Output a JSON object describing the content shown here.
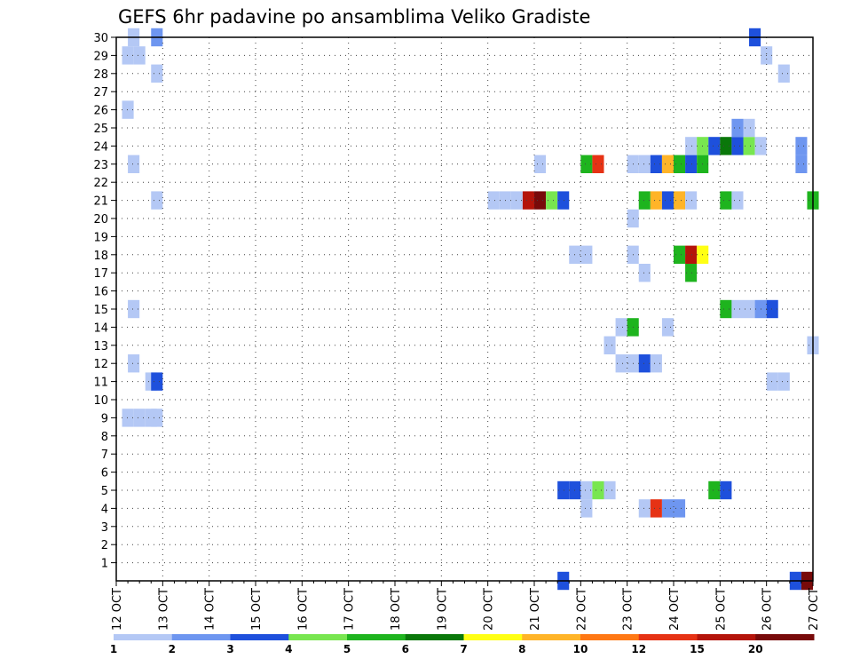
{
  "chart_data": {
    "type": "heatmap",
    "title": "GEFS 6hr padavine po ansamblima Veliko Gradiste",
    "xlabel": "",
    "ylabel": "",
    "x_ticks": [
      "12 OCT",
      "13 OCT",
      "14 OCT",
      "15 OCT",
      "16 OCT",
      "17 OCT",
      "18 OCT",
      "19 OCT",
      "20 OCT",
      "21 OCT",
      "22 OCT",
      "23 OCT",
      "24 OCT",
      "25 OCT",
      "26 OCT",
      "27 OCT"
    ],
    "y_ticks": [
      "1",
      "2",
      "3",
      "4",
      "5",
      "6",
      "7",
      "8",
      "9",
      "10",
      "11",
      "12",
      "13",
      "14",
      "15",
      "16",
      "17",
      "18",
      "19",
      "20",
      "21",
      "22",
      "23",
      "24",
      "25",
      "26",
      "27",
      "28",
      "29",
      "30"
    ],
    "xlim": [
      0,
      60
    ],
    "ylim": [
      0,
      30
    ],
    "grid": true,
    "colorbar": {
      "labels": [
        "1",
        "2",
        "3",
        "4",
        "5",
        "6",
        "7",
        "8",
        "10",
        "12",
        "15",
        "20"
      ],
      "colors": [
        "#b4c8f5",
        "#6e96f0",
        "#1e50dc",
        "#78e650",
        "#1eb41e",
        "#0a780a",
        "#ffff14",
        "#ffb428",
        "#ff7814",
        "#e63214",
        "#b4140a",
        "#780a0a"
      ]
    },
    "cells": [
      {
        "s": 1,
        "m": 30,
        "v": 1
      },
      {
        "s": 3,
        "m": 30,
        "v": 2
      },
      {
        "s": 0.5,
        "m": 29,
        "v": 1
      },
      {
        "s": 1.5,
        "m": 29,
        "v": 1
      },
      {
        "s": 3,
        "m": 28,
        "v": 1
      },
      {
        "s": 0.5,
        "m": 26,
        "v": 1
      },
      {
        "s": 1,
        "m": 23,
        "v": 1
      },
      {
        "s": 3,
        "m": 21,
        "v": 1
      },
      {
        "s": 1,
        "m": 15,
        "v": 1
      },
      {
        "s": 1,
        "m": 12,
        "v": 1
      },
      {
        "s": 2.5,
        "m": 11,
        "v": 1
      },
      {
        "s": 3,
        "m": 11,
        "v": 3
      },
      {
        "s": 0.5,
        "m": 9,
        "v": 1
      },
      {
        "s": 1.5,
        "m": 9,
        "v": 1
      },
      {
        "s": 2.5,
        "m": 9,
        "v": 1
      },
      {
        "s": 3,
        "m": 9,
        "v": 1
      },
      {
        "s": 36,
        "m": 23,
        "v": 1
      },
      {
        "s": 32,
        "m": 21,
        "v": 1
      },
      {
        "s": 33,
        "m": 21,
        "v": 1
      },
      {
        "s": 34,
        "m": 21,
        "v": 1
      },
      {
        "s": 35,
        "m": 21,
        "v": 11
      },
      {
        "s": 36,
        "m": 21,
        "v": 12
      },
      {
        "s": 37,
        "m": 21,
        "v": 4
      },
      {
        "s": 38,
        "m": 21,
        "v": 3
      },
      {
        "s": 40,
        "m": 23,
        "v": 5
      },
      {
        "s": 41,
        "m": 23,
        "v": 10
      },
      {
        "s": 45,
        "m": 21,
        "v": 5
      },
      {
        "s": 46,
        "m": 21,
        "v": 8
      },
      {
        "s": 47,
        "m": 21,
        "v": 3
      },
      {
        "s": 48,
        "m": 21,
        "v": 8
      },
      {
        "s": 49,
        "m": 21,
        "v": 1
      },
      {
        "s": 52,
        "m": 21,
        "v": 5
      },
      {
        "s": 53,
        "m": 21,
        "v": 1
      },
      {
        "s": 59.5,
        "m": 21,
        "v": 5
      },
      {
        "s": 44,
        "m": 23,
        "v": 1
      },
      {
        "s": 45,
        "m": 23,
        "v": 1
      },
      {
        "s": 46,
        "m": 23,
        "v": 3
      },
      {
        "s": 47,
        "m": 23,
        "v": 8
      },
      {
        "s": 48,
        "m": 23,
        "v": 5
      },
      {
        "s": 49,
        "m": 23,
        "v": 3
      },
      {
        "s": 50,
        "m": 23,
        "v": 5
      },
      {
        "s": 49,
        "m": 24,
        "v": 1
      },
      {
        "s": 50,
        "m": 24,
        "v": 4
      },
      {
        "s": 51,
        "m": 24,
        "v": 3
      },
      {
        "s": 52,
        "m": 24,
        "v": 6
      },
      {
        "s": 53,
        "m": 24,
        "v": 3
      },
      {
        "s": 54,
        "m": 24,
        "v": 4
      },
      {
        "s": 55,
        "m": 24,
        "v": 1
      },
      {
        "s": 58.5,
        "m": 24,
        "v": 2
      },
      {
        "s": 58.5,
        "m": 23,
        "v": 2
      },
      {
        "s": 53,
        "m": 25,
        "v": 2
      },
      {
        "s": 54,
        "m": 25,
        "v": 1
      },
      {
        "s": 54.5,
        "m": 30,
        "v": 3
      },
      {
        "s": 55.5,
        "m": 29,
        "v": 1
      },
      {
        "s": 57,
        "m": 28,
        "v": 1
      },
      {
        "s": 44,
        "m": 20,
        "v": 1
      },
      {
        "s": 39,
        "m": 18,
        "v": 1
      },
      {
        "s": 40,
        "m": 18,
        "v": 1
      },
      {
        "s": 44,
        "m": 18,
        "v": 1
      },
      {
        "s": 48,
        "m": 18,
        "v": 5
      },
      {
        "s": 49,
        "m": 18,
        "v": 11
      },
      {
        "s": 50,
        "m": 18,
        "v": 7
      },
      {
        "s": 45,
        "m": 17,
        "v": 1
      },
      {
        "s": 49,
        "m": 17,
        "v": 5
      },
      {
        "s": 52,
        "m": 15,
        "v": 5
      },
      {
        "s": 53,
        "m": 15,
        "v": 1
      },
      {
        "s": 54,
        "m": 15,
        "v": 1
      },
      {
        "s": 55,
        "m": 15,
        "v": 2
      },
      {
        "s": 56,
        "m": 15,
        "v": 3
      },
      {
        "s": 43,
        "m": 14,
        "v": 1
      },
      {
        "s": 44,
        "m": 14,
        "v": 5
      },
      {
        "s": 47,
        "m": 14,
        "v": 1
      },
      {
        "s": 42,
        "m": 13,
        "v": 1
      },
      {
        "s": 59.5,
        "m": 13,
        "v": 1
      },
      {
        "s": 43,
        "m": 12,
        "v": 1
      },
      {
        "s": 44,
        "m": 12,
        "v": 1
      },
      {
        "s": 45,
        "m": 12,
        "v": 3
      },
      {
        "s": 46,
        "m": 12,
        "v": 1
      },
      {
        "s": 56,
        "m": 11,
        "v": 1
      },
      {
        "s": 57,
        "m": 11,
        "v": 1
      },
      {
        "s": 38,
        "m": 5,
        "v": 3
      },
      {
        "s": 39,
        "m": 5,
        "v": 3
      },
      {
        "s": 40,
        "m": 5,
        "v": 1
      },
      {
        "s": 41,
        "m": 5,
        "v": 4
      },
      {
        "s": 42,
        "m": 5,
        "v": 1
      },
      {
        "s": 51,
        "m": 5,
        "v": 5
      },
      {
        "s": 52,
        "m": 5,
        "v": 3
      },
      {
        "s": 40,
        "m": 4,
        "v": 1
      },
      {
        "s": 45,
        "m": 4,
        "v": 1
      },
      {
        "s": 46,
        "m": 4,
        "v": 10
      },
      {
        "s": 47,
        "m": 4,
        "v": 2
      },
      {
        "s": 48,
        "m": 4,
        "v": 2
      },
      {
        "s": 38,
        "m": 0,
        "v": 3
      },
      {
        "s": 58,
        "m": 0,
        "v": 3
      },
      {
        "s": 59,
        "m": 0,
        "v": 12
      }
    ]
  }
}
